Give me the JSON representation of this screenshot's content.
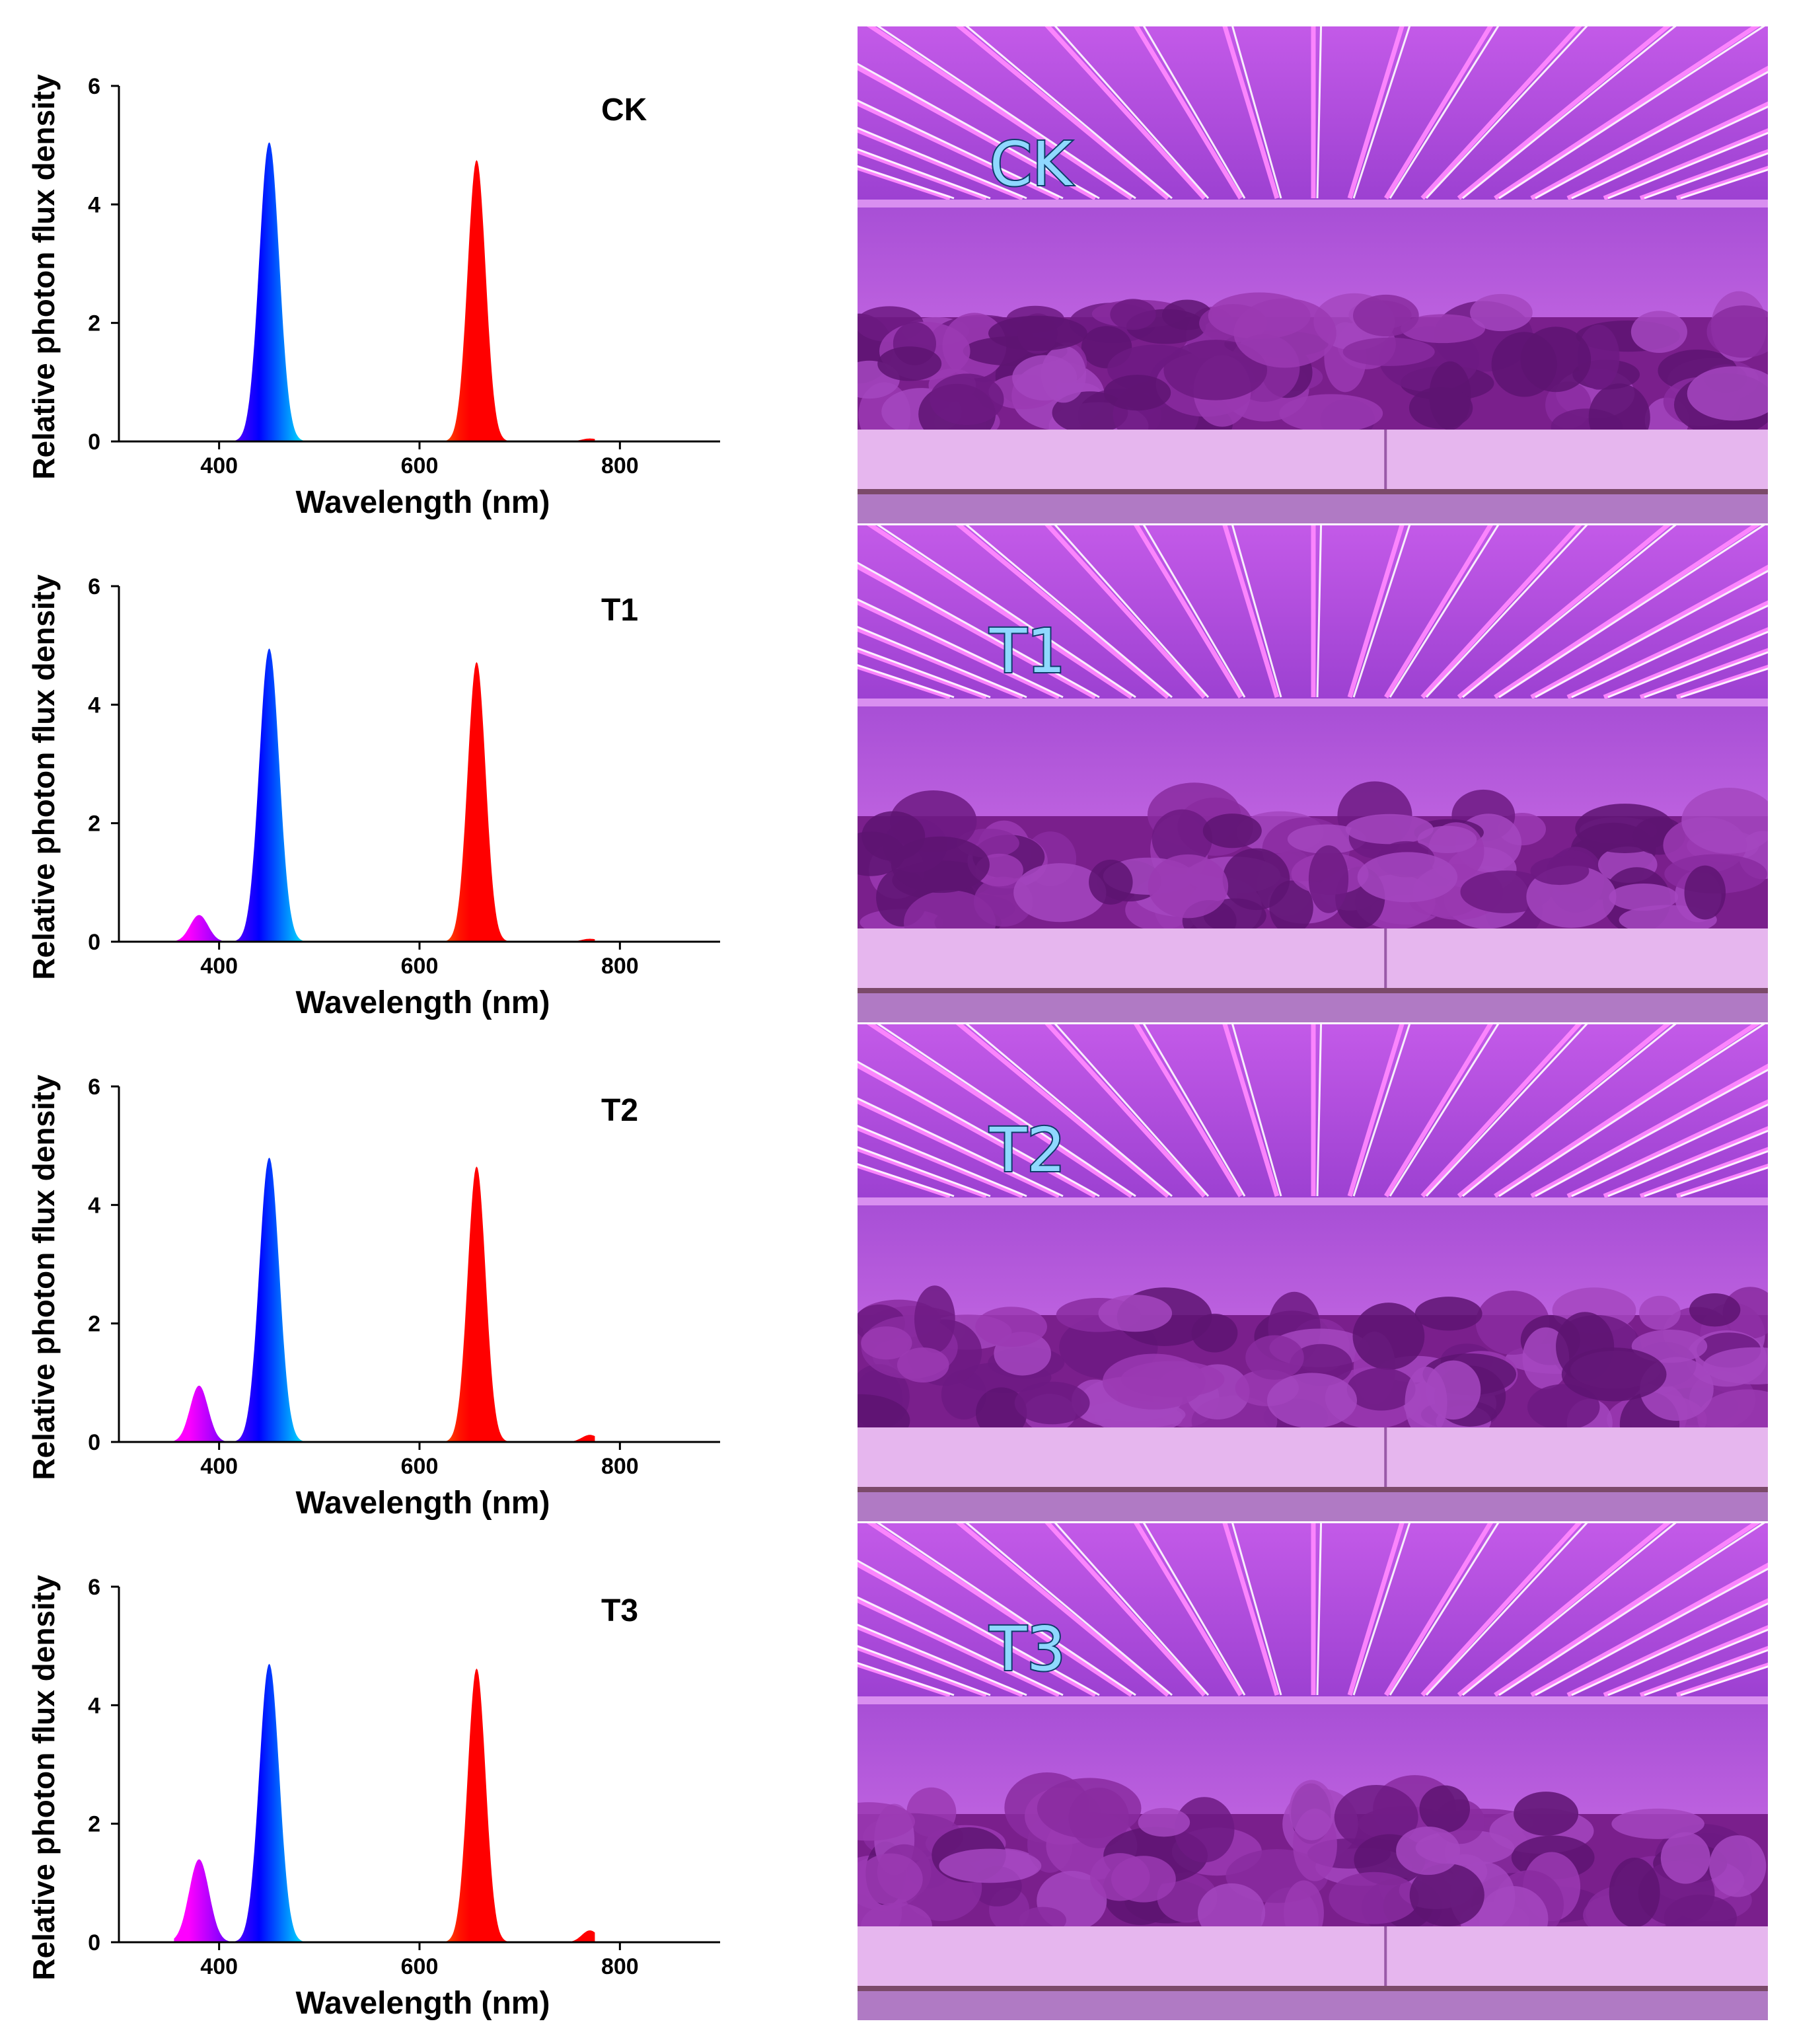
{
  "panels": [
    {
      "label": "CK",
      "photo_label": "CK"
    },
    {
      "label": "T1",
      "photo_label": "T1"
    },
    {
      "label": "T2",
      "photo_label": "T2"
    },
    {
      "label": "T3",
      "photo_label": "T3"
    }
  ],
  "colors": {
    "photo_background": "#b040d8",
    "led_strip": "#ff88ff",
    "foam_tray": "#e6b6ee",
    "lettuce": "#7a1f8c"
  },
  "chart_data": [
    {
      "type": "area",
      "panel_label": "CK",
      "xlabel": "Wavelength (nm)",
      "ylabel": "Relative photon flux density",
      "xlim": [
        300,
        900
      ],
      "ylim": [
        0,
        6
      ],
      "xticks": [
        400,
        600,
        800
      ],
      "yticks": [
        0,
        2,
        4,
        6
      ],
      "grid": false,
      "series": [
        {
          "peaks": [
            {
              "center": 450,
              "height": 5.05,
              "sigma": 10
            },
            {
              "center": 657,
              "height": 4.75,
              "sigma": 9
            },
            {
              "center": 770,
              "height": 0.05,
              "sigma": 8
            }
          ],
          "x_range": [
            355,
            775
          ]
        }
      ]
    },
    {
      "type": "area",
      "panel_label": "T1",
      "xlabel": "Wavelength (nm)",
      "ylabel": "Relative photon flux density",
      "xlim": [
        300,
        900
      ],
      "ylim": [
        0,
        6
      ],
      "xticks": [
        400,
        600,
        800
      ],
      "yticks": [
        0,
        2,
        4,
        6
      ],
      "grid": false,
      "series": [
        {
          "peaks": [
            {
              "center": 380,
              "height": 0.45,
              "sigma": 9
            },
            {
              "center": 450,
              "height": 4.95,
              "sigma": 10
            },
            {
              "center": 657,
              "height": 4.72,
              "sigma": 9
            },
            {
              "center": 770,
              "height": 0.05,
              "sigma": 8
            }
          ],
          "x_range": [
            355,
            775
          ]
        }
      ]
    },
    {
      "type": "area",
      "panel_label": "T2",
      "xlabel": "Wavelength (nm)",
      "ylabel": "Relative photon flux density",
      "xlim": [
        300,
        900
      ],
      "ylim": [
        0,
        6
      ],
      "xticks": [
        400,
        600,
        800
      ],
      "yticks": [
        0,
        2,
        4,
        6
      ],
      "grid": false,
      "series": [
        {
          "peaks": [
            {
              "center": 380,
              "height": 0.95,
              "sigma": 9
            },
            {
              "center": 450,
              "height": 4.8,
              "sigma": 10
            },
            {
              "center": 657,
              "height": 4.65,
              "sigma": 9
            },
            {
              "center": 770,
              "height": 0.12,
              "sigma": 8
            }
          ],
          "x_range": [
            355,
            775
          ]
        }
      ]
    },
    {
      "type": "area",
      "panel_label": "T3",
      "xlabel": "Wavelength (nm)",
      "ylabel": "Relative photon flux density",
      "xlim": [
        300,
        900
      ],
      "ylim": [
        0,
        6
      ],
      "xticks": [
        400,
        600,
        800
      ],
      "yticks": [
        0,
        2,
        4,
        6
      ],
      "grid": false,
      "series": [
        {
          "peaks": [
            {
              "center": 380,
              "height": 1.4,
              "sigma": 10
            },
            {
              "center": 450,
              "height": 4.7,
              "sigma": 10
            },
            {
              "center": 657,
              "height": 4.62,
              "sigma": 9
            },
            {
              "center": 770,
              "height": 0.2,
              "sigma": 8
            }
          ],
          "x_range": [
            355,
            775
          ]
        }
      ]
    }
  ]
}
